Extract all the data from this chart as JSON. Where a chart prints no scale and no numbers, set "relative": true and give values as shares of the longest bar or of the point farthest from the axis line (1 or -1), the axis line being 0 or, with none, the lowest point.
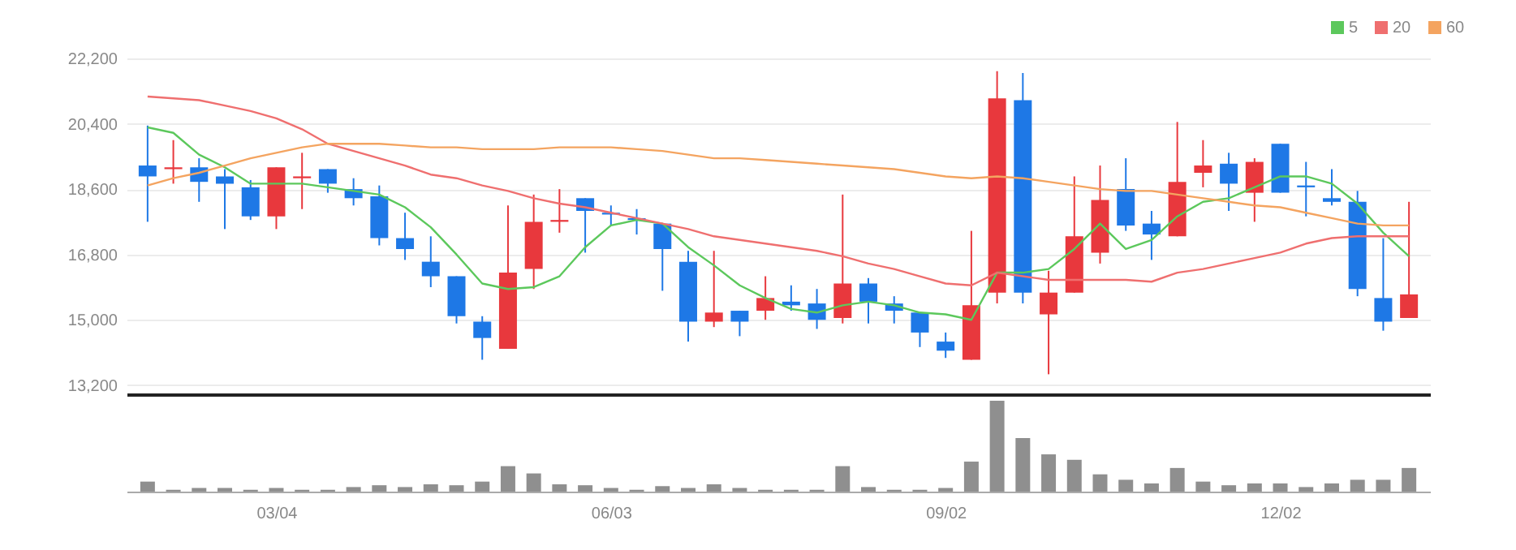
{
  "chart_data": [
    {
      "type": "candlestick",
      "categories": [
        null,
        null,
        null,
        null,
        null,
        null,
        null,
        null,
        null,
        null,
        null,
        null,
        null,
        null,
        null,
        null,
        null,
        null,
        null,
        null,
        null,
        null,
        null,
        null,
        null,
        null,
        null,
        null,
        null,
        null,
        null,
        null,
        null,
        null,
        null,
        null,
        null,
        null,
        null,
        null,
        null,
        null,
        null,
        null,
        null,
        null,
        null,
        null,
        null,
        null
      ],
      "ohlc": [
        [
          19250,
          20350,
          17700,
          18950
        ],
        [
          19150,
          19950,
          18750,
          19200
        ],
        [
          19200,
          19450,
          18250,
          18800
        ],
        [
          18950,
          19150,
          17500,
          18750
        ],
        [
          18650,
          18850,
          17750,
          17850
        ],
        [
          17850,
          19200,
          17500,
          19200
        ],
        [
          18900,
          19600,
          18050,
          18950
        ],
        [
          19150,
          19150,
          18500,
          18750
        ],
        [
          18600,
          18900,
          18150,
          18350
        ],
        [
          18400,
          18700,
          17050,
          17250
        ],
        [
          17250,
          17950,
          16650,
          16950
        ],
        [
          16600,
          17300,
          15900,
          16200
        ],
        [
          16200,
          16200,
          14900,
          15100
        ],
        [
          14950,
          15100,
          13900,
          14500
        ],
        [
          14200,
          18150,
          14200,
          16300
        ],
        [
          16400,
          18450,
          15850,
          17700
        ],
        [
          17700,
          18600,
          17400,
          17750
        ],
        [
          18350,
          18350,
          16850,
          18000
        ],
        [
          17950,
          18150,
          17600,
          17900
        ],
        [
          17800,
          18050,
          17350,
          17750
        ],
        [
          17650,
          17650,
          15800,
          16950
        ],
        [
          16600,
          16900,
          14400,
          14950
        ],
        [
          14950,
          16900,
          14800,
          15200
        ],
        [
          15250,
          15250,
          14550,
          14950
        ],
        [
          15250,
          16200,
          15000,
          15600
        ],
        [
          15500,
          15950,
          15250,
          15400
        ],
        [
          15450,
          15850,
          14750,
          15000
        ],
        [
          15050,
          18450,
          14900,
          16000
        ],
        [
          16000,
          16150,
          14900,
          15500
        ],
        [
          15450,
          15650,
          14900,
          15250
        ],
        [
          15200,
          15200,
          14250,
          14650
        ],
        [
          14400,
          14650,
          13950,
          14150
        ],
        [
          13900,
          17450,
          13900,
          15400
        ],
        [
          15750,
          21850,
          15450,
          21100
        ],
        [
          21050,
          21800,
          15450,
          15750
        ],
        [
          15150,
          16350,
          13500,
          15750
        ],
        [
          15750,
          18950,
          15750,
          17300
        ],
        [
          16850,
          19250,
          16550,
          18300
        ],
        [
          18600,
          19450,
          17450,
          17600
        ],
        [
          17650,
          18000,
          16650,
          17350
        ],
        [
          17300,
          20450,
          17300,
          18800
        ],
        [
          19050,
          19950,
          18650,
          19250
        ],
        [
          19300,
          19600,
          18000,
          18750
        ],
        [
          18500,
          19450,
          17700,
          19350
        ],
        [
          19850,
          19850,
          18500,
          18500
        ],
        [
          18700,
          19350,
          17850,
          18650
        ],
        [
          18350,
          19150,
          18150,
          18250
        ],
        [
          18250,
          18550,
          15650,
          15850
        ],
        [
          15600,
          17250,
          14700,
          14950
        ],
        [
          15050,
          18250,
          15050,
          15700
        ]
      ],
      "colors": [
        "#1e78e6",
        "#e8383d",
        "#1e78e6",
        "#1e78e6",
        "#1e78e6",
        "#e8383d",
        "#e8383d",
        "#1e78e6",
        "#1e78e6",
        "#1e78e6",
        "#1e78e6",
        "#1e78e6",
        "#1e78e6",
        "#1e78e6",
        "#e8383d",
        "#e8383d",
        "#e8383d",
        "#1e78e6",
        "#1e78e6",
        "#1e78e6",
        "#1e78e6",
        "#1e78e6",
        "#e8383d",
        "#1e78e6",
        "#e8383d",
        "#1e78e6",
        "#1e78e6",
        "#e8383d",
        "#1e78e6",
        "#1e78e6",
        "#1e78e6",
        "#1e78e6",
        "#e8383d",
        "#e8383d",
        "#1e78e6",
        "#e8383d",
        "#e8383d",
        "#e8383d",
        "#1e78e6",
        "#1e78e6",
        "#e8383d",
        "#e8383d",
        "#1e78e6",
        "#e8383d",
        "#1e78e6",
        "#1e78e6",
        "#1e78e6",
        "#1e78e6",
        "#1e78e6",
        "#e8383d"
      ],
      "series": [
        {
          "name": "5",
          "type": "line",
          "color": "#5cc85c",
          "values": [
            20300,
            20150,
            19550,
            19200,
            18750,
            18750,
            18750,
            18650,
            18550,
            18450,
            18100,
            17550,
            16800,
            16000,
            15850,
            15900,
            16200,
            17000,
            17600,
            17750,
            17650,
            17000,
            16500,
            15950,
            15600,
            15300,
            15200,
            15400,
            15500,
            15400,
            15200,
            15150,
            15000,
            16300,
            16300,
            16400,
            16950,
            17650,
            16950,
            17200,
            17850,
            18250,
            18350,
            18650,
            18950,
            18950,
            18750,
            18200,
            17400,
            16750
          ]
        },
        {
          "name": "20",
          "type": "line",
          "color": "#ef6f6f",
          "values": [
            21150,
            21100,
            21050,
            20900,
            20750,
            20550,
            20250,
            19850,
            19650,
            19450,
            19250,
            19000,
            18900,
            18700,
            18550,
            18350,
            18200,
            18100,
            17950,
            17800,
            17650,
            17500,
            17300,
            17200,
            17100,
            17000,
            16900,
            16750,
            16550,
            16400,
            16200,
            16000,
            15950,
            16300,
            16200,
            16100,
            16100,
            16100,
            16100,
            16050,
            16300,
            16400,
            16550,
            16700,
            16850,
            17100,
            17250,
            17300,
            17300,
            17300
          ]
        },
        {
          "name": "60",
          "type": "line",
          "color": "#f4a460",
          "values": [
            18700,
            18900,
            19050,
            19250,
            19450,
            19600,
            19750,
            19850,
            19850,
            19850,
            19800,
            19750,
            19750,
            19700,
            19700,
            19700,
            19750,
            19750,
            19750,
            19700,
            19650,
            19550,
            19450,
            19450,
            19400,
            19350,
            19300,
            19250,
            19200,
            19150,
            19050,
            18950,
            18900,
            18950,
            18900,
            18800,
            18700,
            18600,
            18550,
            18550,
            18450,
            18350,
            18250,
            18150,
            18100,
            17950,
            17800,
            17650,
            17600,
            17600
          ]
        }
      ],
      "ylim": [
        12950,
        22200
      ],
      "yticks": [
        {
          "value": 13200,
          "label": "13,200"
        },
        {
          "value": 15000,
          "label": "15,000"
        },
        {
          "value": 16800,
          "label": "16,800"
        },
        {
          "value": 18600,
          "label": "18,600"
        },
        {
          "value": 20400,
          "label": "20,400"
        },
        {
          "value": 22200,
          "label": "22,200"
        }
      ],
      "tick_labels": "y",
      "grid": "y",
      "legend": "top right"
    },
    {
      "type": "bar",
      "relative": true,
      "categories": [
        null,
        null,
        null,
        null,
        null,
        "03/04",
        null,
        null,
        null,
        null,
        null,
        null,
        null,
        null,
        null,
        null,
        null,
        null,
        "06/03",
        null,
        null,
        null,
        null,
        null,
        null,
        null,
        null,
        null,
        null,
        null,
        null,
        "09/02",
        null,
        null,
        null,
        null,
        null,
        null,
        null,
        null,
        null,
        null,
        null,
        null,
        "12/02",
        null,
        null,
        null,
        null,
        null
      ],
      "series": [
        {
          "color": "#8f8f8f",
          "values": [
            0.11,
            0.02,
            0.04,
            0.04,
            0.02,
            0.04,
            0.02,
            0.02,
            0.05,
            0.07,
            0.05,
            0.08,
            0.07,
            0.11,
            0.28,
            0.2,
            0.08,
            0.07,
            0.04,
            0.02,
            0.06,
            0.04,
            0.08,
            0.04,
            0.02,
            0.02,
            0.02,
            0.28,
            0.05,
            0.02,
            0.02,
            0.04,
            0.33,
            1,
            0.59,
            0.41,
            0.35,
            0.19,
            0.13,
            0.09,
            0.26,
            0.11,
            0.07,
            0.09,
            0.09,
            0.05,
            0.09,
            0.13,
            0.13,
            0.26
          ]
        }
      ],
      "tick_labels": "x"
    }
  ]
}
